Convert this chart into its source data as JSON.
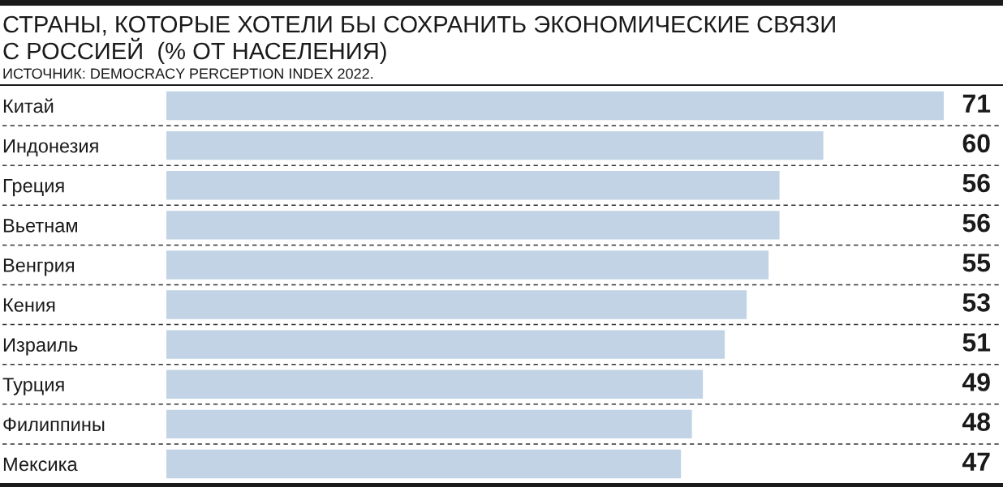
{
  "chart_data": {
    "type": "bar",
    "orientation": "horizontal",
    "title": "СТРАНЫ, КОТОРЫЕ ХОТЕЛИ БЫ СОХРАНИТЬ ЭКОНОМИЧЕСКИЕ СВЯЗИ\nС РОССИЕЙ  (% ОТ НАСЕЛЕНИЯ)",
    "annotations": [
      "ИСТОЧНИК: DEMOCRACY PERCEPTION INDEX 2022."
    ],
    "categories": [
      "Китай",
      "Индонезия",
      "Греция",
      "Вьетнам",
      "Венгрия",
      "Кения",
      "Израиль",
      "Турция",
      "Филиппины",
      "Мексика"
    ],
    "values": [
      71,
      60,
      56,
      56,
      55,
      53,
      51,
      49,
      48,
      47
    ],
    "color": "#c1d3e4",
    "data_labels": true,
    "grid": "y",
    "tick_labels": "y"
  }
}
